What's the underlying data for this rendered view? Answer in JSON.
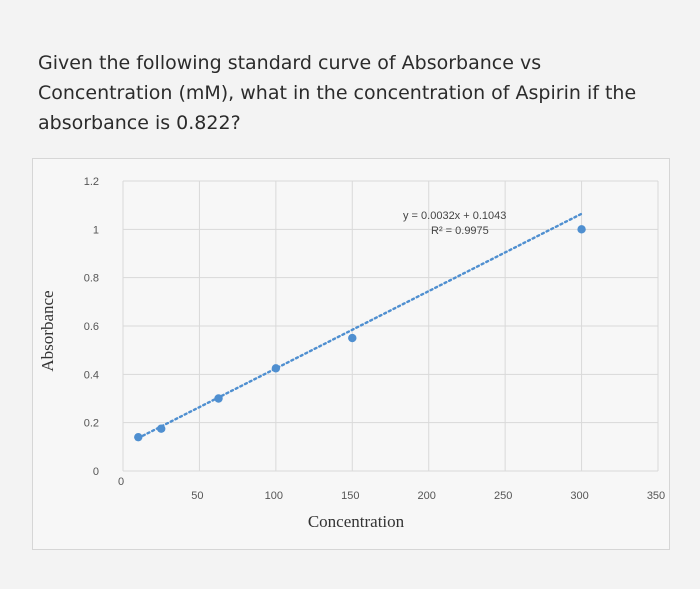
{
  "question": {
    "text": "Given the following standard curve of Absorbance vs Concentration (mM), what in the concentration of Aspirin if the absorbance is 0.822?"
  },
  "chart_data": {
    "type": "scatter",
    "xlabel": "Concentration",
    "ylabel": "Absorbance",
    "xlim": [
      0,
      350
    ],
    "ylim": [
      0,
      1.2
    ],
    "x_ticks": [
      "0",
      "50",
      "100",
      "150",
      "200",
      "250",
      "300",
      "350"
    ],
    "y_ticks": [
      "0",
      "0.2",
      "0.4",
      "0.6",
      "0.8",
      "1",
      "1.2"
    ],
    "grid": true,
    "series": [
      {
        "x": [
          10,
          25,
          62.5,
          100,
          150,
          300
        ],
        "y": [
          0.14,
          0.175,
          0.3,
          0.425,
          0.55,
          1.0
        ]
      }
    ],
    "trendline": {
      "slope": 0.0032,
      "intercept": 0.1043,
      "x_range": [
        10,
        300
      ],
      "style": "dotted"
    },
    "annotations": {
      "equation": "y = 0.0032x + 0.1043",
      "r_squared": "R² = 0.9975"
    },
    "colors": {
      "marker": "#4f8fd0",
      "trendline": "#4f8fd0",
      "grid": "#d9d9d9"
    }
  }
}
